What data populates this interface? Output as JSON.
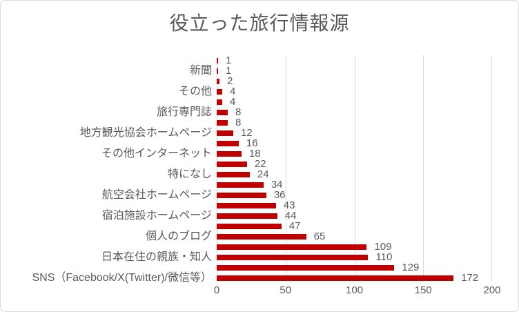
{
  "chart_data": {
    "type": "bar",
    "orientation": "horizontal",
    "title": "役立った旅行情報源",
    "xlabel": "",
    "ylabel": "",
    "xlim": [
      0,
      200
    ],
    "x_ticks": [
      0,
      50,
      100,
      150,
      200
    ],
    "grid": true,
    "legend": false,
    "data_labels": true,
    "category_label_interval": 2,
    "colors": {
      "bar": "#C00000",
      "text": "#595959",
      "grid": "#D9D9D9",
      "border": "#D9D9D9",
      "background": "#FFFFFF"
    },
    "bars": [
      {
        "label": "",
        "value": 1
      },
      {
        "label": "新聞",
        "value": 1
      },
      {
        "label": "",
        "value": 2
      },
      {
        "label": "その他",
        "value": 4
      },
      {
        "label": "",
        "value": 4
      },
      {
        "label": "旅行専門誌",
        "value": 8
      },
      {
        "label": "",
        "value": 8
      },
      {
        "label": "地方観光協会ホームページ",
        "value": 12
      },
      {
        "label": "",
        "value": 16
      },
      {
        "label": "その他インターネット",
        "value": 18
      },
      {
        "label": "",
        "value": 22
      },
      {
        "label": "特になし",
        "value": 24
      },
      {
        "label": "",
        "value": 34
      },
      {
        "label": "航空会社ホームページ",
        "value": 36
      },
      {
        "label": "",
        "value": 43
      },
      {
        "label": "宿泊施設ホームページ",
        "value": 44
      },
      {
        "label": "",
        "value": 47
      },
      {
        "label": "個人のブログ",
        "value": 65
      },
      {
        "label": "",
        "value": 109
      },
      {
        "label": "日本在住の親族・知人",
        "value": 110
      },
      {
        "label": "",
        "value": 129
      },
      {
        "label": "SNS（Facebook/X(Twitter)/微信等）",
        "value": 172
      }
    ]
  }
}
